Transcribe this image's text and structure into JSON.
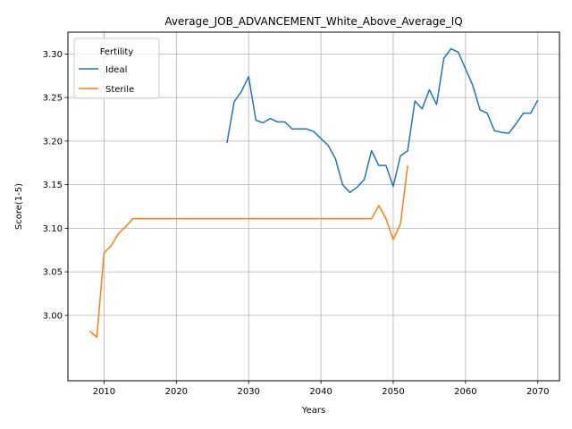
{
  "chart_data": {
    "type": "line",
    "title": "Average_JOB_ADVANCEMENT_White_Above_Average_IQ",
    "xlabel": "Years",
    "ylabel": "Score(1-5)",
    "xlim": [
      2005,
      2073
    ],
    "ylim": [
      2.925,
      3.325
    ],
    "xticks": [
      2010,
      2020,
      2030,
      2040,
      2050,
      2060,
      2070
    ],
    "yticks": [
      3.0,
      3.05,
      3.1,
      3.15,
      3.2,
      3.25,
      3.3
    ],
    "ytick_labels": [
      "3.00",
      "3.05",
      "3.10",
      "3.15",
      "3.20",
      "3.25",
      "3.30"
    ],
    "grid": true,
    "legend": {
      "title": "Fertility",
      "position": "top-left"
    },
    "series": [
      {
        "name": "Ideal",
        "color": "#1f77b4",
        "x": [
          2027,
          2028,
          2029,
          2030,
          2031,
          2032,
          2033,
          2034,
          2035,
          2036,
          2037,
          2038,
          2039,
          2040,
          2041,
          2042,
          2043,
          2044,
          2045,
          2046,
          2047,
          2048,
          2049,
          2050,
          2051,
          2052,
          2053,
          2054,
          2055,
          2056,
          2057,
          2058,
          2059,
          2060,
          2061,
          2062,
          2063,
          2064,
          2065,
          2066,
          2067,
          2068,
          2069,
          2070
        ],
        "y": [
          3.198,
          3.245,
          3.257,
          3.274,
          3.224,
          3.221,
          3.226,
          3.222,
          3.222,
          3.214,
          3.214,
          3.214,
          3.211,
          3.203,
          3.195,
          3.18,
          3.15,
          3.141,
          3.147,
          3.156,
          3.189,
          3.172,
          3.172,
          3.148,
          3.183,
          3.189,
          3.246,
          3.237,
          3.259,
          3.242,
          3.295,
          3.306,
          3.302,
          3.283,
          3.264,
          3.236,
          3.232,
          3.212,
          3.21,
          3.209,
          3.22,
          3.232,
          3.232,
          3.247
        ]
      },
      {
        "name": "Sterile",
        "color": "#ff7f0e",
        "x": [
          2008,
          2009,
          2010,
          2011,
          2012,
          2013,
          2014,
          2015,
          2016,
          2017,
          2018,
          2019,
          2020,
          2021,
          2022,
          2023,
          2024,
          2025,
          2026,
          2027,
          2028,
          2029,
          2030,
          2031,
          2032,
          2033,
          2034,
          2035,
          2036,
          2037,
          2038,
          2039,
          2040,
          2041,
          2042,
          2043,
          2044,
          2045,
          2046,
          2047,
          2048,
          2049,
          2050,
          2051,
          2052
        ],
        "y": [
          2.982,
          2.975,
          3.072,
          3.08,
          3.094,
          3.102,
          3.111,
          3.111,
          3.111,
          3.111,
          3.111,
          3.111,
          3.111,
          3.111,
          3.111,
          3.111,
          3.111,
          3.111,
          3.111,
          3.111,
          3.111,
          3.111,
          3.111,
          3.111,
          3.111,
          3.111,
          3.111,
          3.111,
          3.111,
          3.111,
          3.111,
          3.111,
          3.111,
          3.111,
          3.111,
          3.111,
          3.111,
          3.111,
          3.111,
          3.111,
          3.126,
          3.111,
          3.087,
          3.105,
          3.172
        ]
      }
    ]
  }
}
